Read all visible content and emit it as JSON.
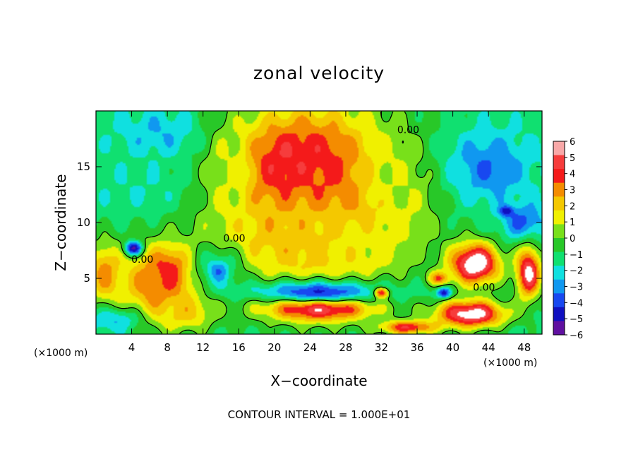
{
  "chart_data": {
    "type": "heatmap",
    "title": "zonal velocity",
    "xlabel": "X−coordinate",
    "ylabel": "Z−coordinate",
    "x_unit_left": "(×1000 m)",
    "x_unit_right": "(×1000 m)",
    "xlim": [
      0,
      50
    ],
    "ylim": [
      0,
      20
    ],
    "x_ticks": [
      4,
      8,
      12,
      16,
      20,
      24,
      28,
      32,
      36,
      40,
      44,
      48
    ],
    "y_ticks": [
      5,
      10,
      15
    ],
    "footer": "CONTOUR INTERVAL = 1.000E+01",
    "contour_labels": [
      {
        "text": "0.00",
        "x": 5.2,
        "y": 6.4
      },
      {
        "text": "0.00",
        "x": 15.5,
        "y": 8.3
      },
      {
        "text": "0.00",
        "x": 35.0,
        "y": 18.0
      },
      {
        "text": "0.00",
        "x": 43.5,
        "y": 3.9
      }
    ],
    "colorbar": {
      "levels": [
        "6",
        "5",
        "4",
        "3",
        "2",
        "1",
        "0",
        "−1",
        "−2",
        "−3",
        "−4",
        "−5",
        "−6"
      ],
      "colors": [
        "#f8a8a8",
        "#f63c3c",
        "#f41a1a",
        "#f48c00",
        "#f4c800",
        "#f0f000",
        "#78e01a",
        "#28c828",
        "#10e070",
        "#10e0e0",
        "#1098f0",
        "#1848f0",
        "#1010c0",
        "#6010a0"
      ]
    },
    "field_blobs": [
      {
        "x": 22.5,
        "y": 15.0,
        "rx": 7.5,
        "ry": 4.6,
        "v": 7.5
      },
      {
        "x": 24.5,
        "y": 12.5,
        "rx": 13.0,
        "ry": 11.0,
        "v": 4.5
      },
      {
        "x": 30.0,
        "y": 11.5,
        "rx": 5.0,
        "ry": 2.0,
        "v": 4.5
      },
      {
        "x": 24.0,
        "y": 9.5,
        "rx": 12.0,
        "ry": 4.0,
        "v": 2.5
      },
      {
        "x": 7.0,
        "y": 18.0,
        "rx": 6.0,
        "ry": 3.0,
        "v": -3.0
      },
      {
        "x": 5.0,
        "y": 13.0,
        "rx": 7.0,
        "ry": 3.0,
        "v": -2.0
      },
      {
        "x": 44.0,
        "y": 15.0,
        "rx": 6.0,
        "ry": 4.0,
        "v": -4.0
      },
      {
        "x": 48.0,
        "y": 10.0,
        "rx": 3.0,
        "ry": 2.0,
        "v": -4.5
      },
      {
        "x": 46.0,
        "y": 11.0,
        "rx": 1.0,
        "ry": 0.6,
        "v": -6.0
      },
      {
        "x": 42.5,
        "y": 6.3,
        "rx": 3.6,
        "ry": 2.4,
        "v": 7.5
      },
      {
        "x": 8.0,
        "y": 5.2,
        "rx": 2.4,
        "ry": 2.6,
        "v": 7.5
      },
      {
        "x": 7.0,
        "y": 4.5,
        "rx": 6.0,
        "ry": 4.5,
        "v": 4.0
      },
      {
        "x": 1.0,
        "y": 5.5,
        "rx": 2.5,
        "ry": 3.5,
        "v": 3.5
      },
      {
        "x": 4.2,
        "y": 7.7,
        "rx": 1.2,
        "ry": 0.8,
        "v": -6.0
      },
      {
        "x": 13.7,
        "y": 5.7,
        "rx": 1.8,
        "ry": 1.5,
        "v": 6.0
      },
      {
        "x": 13.7,
        "y": 5.7,
        "rx": 2.8,
        "ry": 2.4,
        "v": -4.0
      },
      {
        "x": 25.0,
        "y": 2.5,
        "rx": 7.5,
        "ry": 1.6,
        "v": 7.0
      },
      {
        "x": 25.0,
        "y": 3.8,
        "rx": 10.0,
        "ry": 1.3,
        "v": -5.0
      },
      {
        "x": 30.0,
        "y": 8.0,
        "rx": 5.5,
        "ry": 2.5,
        "v": 1.5
      },
      {
        "x": 32.0,
        "y": 3.7,
        "rx": 1.0,
        "ry": 0.6,
        "v": 5.0
      },
      {
        "x": 38.5,
        "y": 5.0,
        "rx": 1.5,
        "ry": 0.8,
        "v": 4.0
      },
      {
        "x": 35.0,
        "y": 0.6,
        "rx": 4.0,
        "ry": 0.8,
        "v": 5.0
      },
      {
        "x": 42.0,
        "y": 1.8,
        "rx": 5.0,
        "ry": 1.6,
        "v": 7.0
      },
      {
        "x": 48.5,
        "y": 5.5,
        "rx": 1.8,
        "ry": 3.0,
        "v": 6.5
      },
      {
        "x": 2.0,
        "y": 1.2,
        "rx": 4.0,
        "ry": 1.4,
        "v": -3.0
      },
      {
        "x": 39.0,
        "y": 3.7,
        "rx": 1.0,
        "ry": 0.6,
        "v": -5.5
      },
      {
        "x": 33.5,
        "y": 13.0,
        "rx": 4.5,
        "ry": 5.0,
        "v": 1.0
      },
      {
        "x": 15.0,
        "y": 14.5,
        "rx": 3.0,
        "ry": 5.5,
        "v": 1.0
      },
      {
        "x": 10.0,
        "y": 2.0,
        "rx": 4.0,
        "ry": 2.0,
        "v": 2.5
      }
    ],
    "field_base": -1.5
  }
}
